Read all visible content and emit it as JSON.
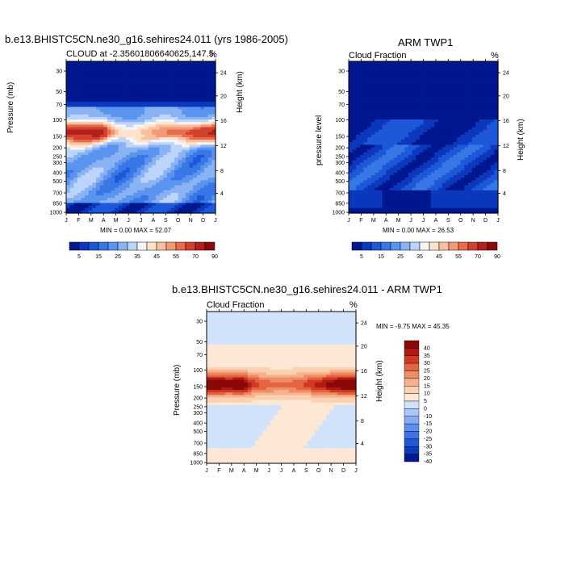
{
  "model_title": "b.e13.BHISTC5CN.ne30_g16.sehires24.011 (yrs 1986-2005)",
  "obs_title": "ARM TWP1",
  "diff_title": "b.e13.BHISTC5CN.ne30_g16.sehires24.011 - ARM TWP1",
  "colors": {
    "abs_scale": [
      "#00178f",
      "#0b38bd",
      "#1c58d8",
      "#3877e6",
      "#5b94ee",
      "#8ab3f4",
      "#bdd5fa",
      "#f4f5f5",
      "#fde3cc",
      "#f8c0a0",
      "#f29a75",
      "#e86b4b",
      "#d2412e",
      "#b41f1c",
      "#8a0a0e"
    ],
    "diff_scale": [
      "#001a8f",
      "#0e3bb8",
      "#2058d8",
      "#3c74e8",
      "#5d8fef",
      "#84abf4",
      "#abc6f8",
      "#d1e3fb",
      "#fde8d6",
      "#fbd1b3",
      "#f6b18d",
      "#ef8d66",
      "#e46542",
      "#d03a22",
      "#b01a10",
      "#8a0808"
    ]
  },
  "chart_data": [
    {
      "type": "heatmap",
      "title": "CLOUD at -2.35601806640625,147.5",
      "title_right": "%",
      "xlabel": "",
      "ylabel": "Pressure (mb)",
      "ylabel_right": "Height (km)",
      "x_ticks": [
        "J",
        "F",
        "M",
        "A",
        "M",
        "J",
        "J",
        "A",
        "S",
        "O",
        "N",
        "D",
        "J"
      ],
      "y_ticks": [
        "30",
        "50",
        "70",
        "100",
        "150",
        "200",
        "250",
        "300",
        "400",
        "500",
        "700",
        "850",
        "1000"
      ],
      "y_ticks_right": [
        "24",
        "20",
        "16",
        "12",
        "8",
        "4"
      ],
      "min_label": "MIN =",
      "min_value": "0.00",
      "max_label": "MAX =",
      "max_value": "52.07",
      "colorbar_labels": [
        "5",
        "15",
        "25",
        "35",
        "45",
        "55",
        "70",
        "90"
      ],
      "value_range": [
        0,
        52.07
      ]
    },
    {
      "type": "heatmap",
      "title": "Cloud Fraction",
      "title_right": "%",
      "xlabel": "",
      "ylabel": "pressure level",
      "ylabel_right": "Height (km)",
      "x_ticks": [
        "J",
        "F",
        "M",
        "A",
        "M",
        "J",
        "J",
        "A",
        "S",
        "O",
        "N",
        "D",
        "J"
      ],
      "y_ticks": [
        "30",
        "50",
        "70",
        "100",
        "150",
        "200",
        "250",
        "300",
        "400",
        "500",
        "700",
        "850",
        "1000"
      ],
      "y_ticks_right": [
        "24",
        "20",
        "16",
        "12",
        "8",
        "4"
      ],
      "min_label": "MIN =",
      "min_value": "0.00",
      "max_label": "MAX =",
      "max_value": "26.53",
      "colorbar_labels": [
        "5",
        "15",
        "25",
        "35",
        "45",
        "55",
        "70",
        "90"
      ],
      "value_range": [
        0,
        26.53
      ]
    },
    {
      "type": "heatmap",
      "title": "Cloud Fraction",
      "title_right": "%",
      "xlabel": "",
      "ylabel": "Pressure (mb)",
      "ylabel_right": "Height (km)",
      "x_ticks": [
        "J",
        "F",
        "M",
        "A",
        "M",
        "J",
        "J",
        "A",
        "S",
        "O",
        "N",
        "D",
        "J"
      ],
      "y_ticks": [
        "30",
        "50",
        "70",
        "100",
        "150",
        "200",
        "250",
        "300",
        "400",
        "500",
        "700",
        "850",
        "1000"
      ],
      "y_ticks_right": [
        "24",
        "20",
        "16",
        "12",
        "8",
        "4"
      ],
      "min_label": "MIN =",
      "min_value": "-9.75",
      "max_label": "MAX =",
      "max_value": "45.35",
      "colorbar_labels": [
        "40",
        "35",
        "30",
        "25",
        "20",
        "15",
        "10",
        "5",
        "0",
        "-10",
        "-15",
        "-20",
        "-25",
        "-30",
        "-35",
        "-40"
      ],
      "value_range": [
        -9.75,
        45.35
      ]
    }
  ]
}
